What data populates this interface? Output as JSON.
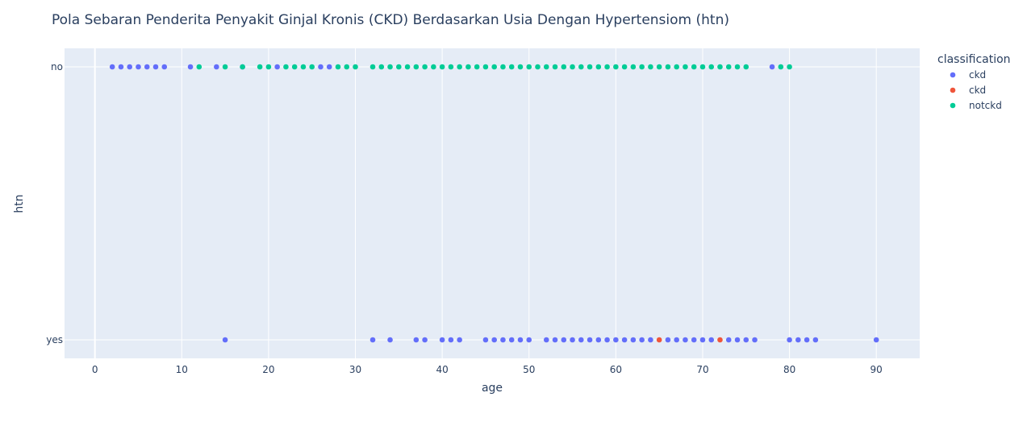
{
  "chart_data": {
    "type": "scatter",
    "title": "Pola Sebaran Penderita Penyakit Ginjal Kronis (CKD) Berdasarkan Usia Dengan Hypertensiom (htn)",
    "xlabel": "age",
    "ylabel": "htn",
    "xlim": [
      -3.5,
      95
    ],
    "x_ticks": [
      0,
      10,
      20,
      30,
      40,
      50,
      60,
      70,
      80,
      90
    ],
    "categories": [
      "no",
      "yes"
    ],
    "grid": true,
    "legend": {
      "title": "classification",
      "placement": "top-right"
    },
    "series": [
      {
        "name": "ckd",
        "color": "#636efa",
        "points": [
          {
            "x": 2,
            "y": "no"
          },
          {
            "x": 3,
            "y": "no"
          },
          {
            "x": 4,
            "y": "no"
          },
          {
            "x": 5,
            "y": "no"
          },
          {
            "x": 6,
            "y": "no"
          },
          {
            "x": 7,
            "y": "no"
          },
          {
            "x": 8,
            "y": "no"
          },
          {
            "x": 11,
            "y": "no"
          },
          {
            "x": 14,
            "y": "no"
          },
          {
            "x": 17,
            "y": "no"
          },
          {
            "x": 21,
            "y": "no"
          },
          {
            "x": 26,
            "y": "no"
          },
          {
            "x": 27,
            "y": "no"
          },
          {
            "x": 78,
            "y": "no"
          },
          {
            "x": 15,
            "y": "yes"
          },
          {
            "x": 32,
            "y": "yes"
          },
          {
            "x": 34,
            "y": "yes"
          },
          {
            "x": 37,
            "y": "yes"
          },
          {
            "x": 38,
            "y": "yes"
          },
          {
            "x": 40,
            "y": "yes"
          },
          {
            "x": 41,
            "y": "yes"
          },
          {
            "x": 42,
            "y": "yes"
          },
          {
            "x": 45,
            "y": "yes"
          },
          {
            "x": 46,
            "y": "yes"
          },
          {
            "x": 47,
            "y": "yes"
          },
          {
            "x": 48,
            "y": "yes"
          },
          {
            "x": 49,
            "y": "yes"
          },
          {
            "x": 50,
            "y": "yes"
          },
          {
            "x": 52,
            "y": "yes"
          },
          {
            "x": 53,
            "y": "yes"
          },
          {
            "x": 54,
            "y": "yes"
          },
          {
            "x": 55,
            "y": "yes"
          },
          {
            "x": 56,
            "y": "yes"
          },
          {
            "x": 57,
            "y": "yes"
          },
          {
            "x": 58,
            "y": "yes"
          },
          {
            "x": 59,
            "y": "yes"
          },
          {
            "x": 60,
            "y": "yes"
          },
          {
            "x": 61,
            "y": "yes"
          },
          {
            "x": 62,
            "y": "yes"
          },
          {
            "x": 63,
            "y": "yes"
          },
          {
            "x": 64,
            "y": "yes"
          },
          {
            "x": 66,
            "y": "yes"
          },
          {
            "x": 67,
            "y": "yes"
          },
          {
            "x": 68,
            "y": "yes"
          },
          {
            "x": 69,
            "y": "yes"
          },
          {
            "x": 70,
            "y": "yes"
          },
          {
            "x": 71,
            "y": "yes"
          },
          {
            "x": 73,
            "y": "yes"
          },
          {
            "x": 74,
            "y": "yes"
          },
          {
            "x": 75,
            "y": "yes"
          },
          {
            "x": 76,
            "y": "yes"
          },
          {
            "x": 80,
            "y": "yes"
          },
          {
            "x": 81,
            "y": "yes"
          },
          {
            "x": 82,
            "y": "yes"
          },
          {
            "x": 83,
            "y": "yes"
          },
          {
            "x": 90,
            "y": "yes"
          }
        ]
      },
      {
        "name": "ckd",
        "color": "#ef553b",
        "points": [
          {
            "x": 65,
            "y": "yes"
          },
          {
            "x": 72,
            "y": "yes"
          }
        ]
      },
      {
        "name": "notckd",
        "color": "#00cc96",
        "points": [
          {
            "x": 12,
            "y": "no"
          },
          {
            "x": 15,
            "y": "no"
          },
          {
            "x": 17,
            "y": "no"
          },
          {
            "x": 19,
            "y": "no"
          },
          {
            "x": 20,
            "y": "no"
          },
          {
            "x": 22,
            "y": "no"
          },
          {
            "x": 23,
            "y": "no"
          },
          {
            "x": 24,
            "y": "no"
          },
          {
            "x": 25,
            "y": "no"
          },
          {
            "x": 28,
            "y": "no"
          },
          {
            "x": 29,
            "y": "no"
          },
          {
            "x": 30,
            "y": "no"
          },
          {
            "x": 32,
            "y": "no"
          },
          {
            "x": 33,
            "y": "no"
          },
          {
            "x": 34,
            "y": "no"
          },
          {
            "x": 35,
            "y": "no"
          },
          {
            "x": 36,
            "y": "no"
          },
          {
            "x": 37,
            "y": "no"
          },
          {
            "x": 38,
            "y": "no"
          },
          {
            "x": 39,
            "y": "no"
          },
          {
            "x": 40,
            "y": "no"
          },
          {
            "x": 41,
            "y": "no"
          },
          {
            "x": 42,
            "y": "no"
          },
          {
            "x": 43,
            "y": "no"
          },
          {
            "x": 44,
            "y": "no"
          },
          {
            "x": 45,
            "y": "no"
          },
          {
            "x": 46,
            "y": "no"
          },
          {
            "x": 47,
            "y": "no"
          },
          {
            "x": 48,
            "y": "no"
          },
          {
            "x": 49,
            "y": "no"
          },
          {
            "x": 50,
            "y": "no"
          },
          {
            "x": 51,
            "y": "no"
          },
          {
            "x": 52,
            "y": "no"
          },
          {
            "x": 53,
            "y": "no"
          },
          {
            "x": 54,
            "y": "no"
          },
          {
            "x": 55,
            "y": "no"
          },
          {
            "x": 56,
            "y": "no"
          },
          {
            "x": 57,
            "y": "no"
          },
          {
            "x": 58,
            "y": "no"
          },
          {
            "x": 59,
            "y": "no"
          },
          {
            "x": 60,
            "y": "no"
          },
          {
            "x": 61,
            "y": "no"
          },
          {
            "x": 62,
            "y": "no"
          },
          {
            "x": 63,
            "y": "no"
          },
          {
            "x": 64,
            "y": "no"
          },
          {
            "x": 65,
            "y": "no"
          },
          {
            "x": 66,
            "y": "no"
          },
          {
            "x": 67,
            "y": "no"
          },
          {
            "x": 68,
            "y": "no"
          },
          {
            "x": 69,
            "y": "no"
          },
          {
            "x": 70,
            "y": "no"
          },
          {
            "x": 71,
            "y": "no"
          },
          {
            "x": 72,
            "y": "no"
          },
          {
            "x": 73,
            "y": "no"
          },
          {
            "x": 74,
            "y": "no"
          },
          {
            "x": 75,
            "y": "no"
          },
          {
            "x": 79,
            "y": "no"
          },
          {
            "x": 80,
            "y": "no"
          }
        ]
      }
    ]
  }
}
